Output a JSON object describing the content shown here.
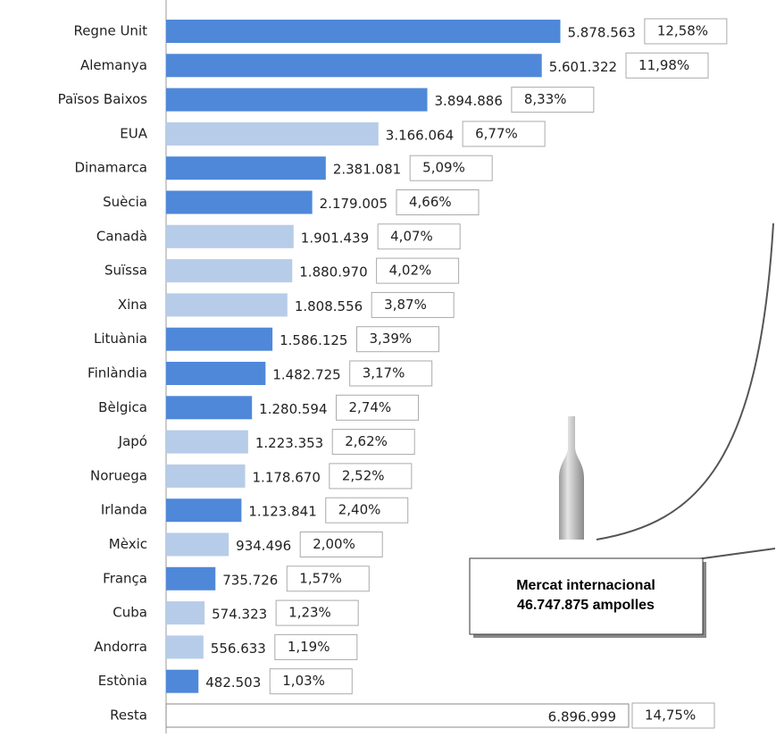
{
  "chart_data": {
    "type": "bar",
    "orientation": "horizontal",
    "categories": [
      "Regne Unit",
      "Alemanya",
      "Països Baixos",
      "EUA",
      "Dinamarca",
      "Suècia",
      "Canadà",
      "Suïssa",
      "Xina",
      "Lituània",
      "Finlàndia",
      "Bèlgica",
      "Japó",
      "Noruega",
      "Irlanda",
      "Mèxic",
      "França",
      "Cuba",
      "Andorra",
      "Estònia",
      "Resta"
    ],
    "values": [
      5878563,
      5601322,
      3894886,
      3166064,
      2381081,
      2179005,
      1901439,
      1880970,
      1808556,
      1586125,
      1482725,
      1280594,
      1223353,
      1178670,
      1123841,
      934496,
      735726,
      574323,
      556633,
      482503,
      6896999
    ],
    "value_labels": [
      "5.878.563",
      "5.601.322",
      "3.894.886",
      "3.166.064",
      "2.381.081",
      "2.179.005",
      "1.901.439",
      "1.880.970",
      "1.808.556",
      "1.586.125",
      "1.482.725",
      "1.280.594",
      "1.223.353",
      "1.178.670",
      "1.123.841",
      "934.496",
      "735.726",
      "574.323",
      "556.633",
      "482.503",
      "6.896.999"
    ],
    "colors": [
      "#4f88d9",
      "#4f88d9",
      "#4f88d9",
      "#b7cce8",
      "#4f88d9",
      "#4f88d9",
      "#b7cce8",
      "#b7cce8",
      "#b7cce8",
      "#4f88d9",
      "#4f88d9",
      "#4f88d9",
      "#b7cce8",
      "#b7cce8",
      "#4f88d9",
      "#b7cce8",
      "#4f88d9",
      "#b7cce8",
      "#b7cce8",
      "#4f88d9",
      "#ffffff"
    ],
    "share_values": [
      12.58,
      11.98,
      8.33,
      6.77,
      5.09,
      4.66,
      4.07,
      4.02,
      3.87,
      3.39,
      3.17,
      2.74,
      2.62,
      2.52,
      2.4,
      2.0,
      1.57,
      1.23,
      1.19,
      1.03,
      14.75
    ],
    "share_labels": [
      "12,58%",
      "11,98%",
      "8,33%",
      "6,77%",
      "5,09%",
      "4,66%",
      "4,07%",
      "4,02%",
      "3,87%",
      "3,39%",
      "3,17%",
      "2,74%",
      "2,62%",
      "2,52%",
      "2,40%",
      "2,00%",
      "1,57%",
      "1,23%",
      "1,19%",
      "1,03%",
      "14,75%"
    ],
    "annotation": [
      "Mercat internacional",
      "46.747.875 ampolles"
    ]
  }
}
